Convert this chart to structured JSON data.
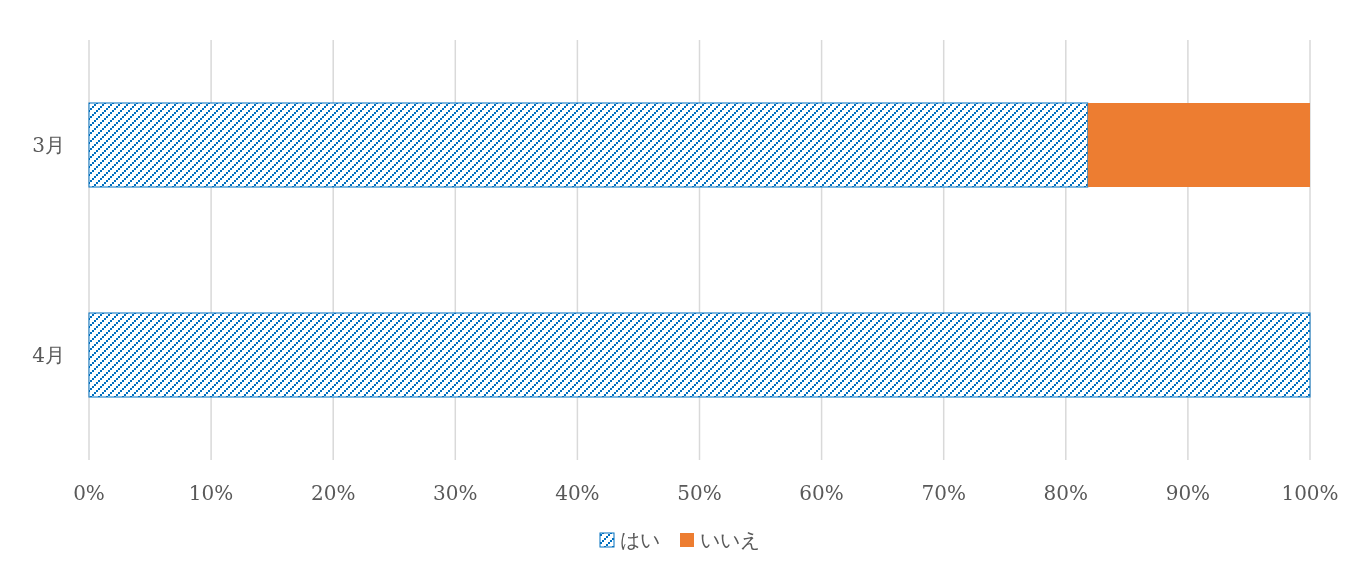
{
  "chart_data": {
    "type": "bar",
    "orientation": "horizontal",
    "stacked": true,
    "categories": [
      "3月",
      "4月"
    ],
    "series": [
      {
        "name": "はい",
        "color": "#0070c0",
        "values": [
          81.8,
          100
        ]
      },
      {
        "name": "いいえ",
        "color": "#ed7d31",
        "values": [
          18.2,
          0
        ]
      }
    ],
    "xlim": [
      0,
      100
    ],
    "xticks": [
      {
        "value": 0,
        "label": "0%"
      },
      {
        "value": 10,
        "label": "10%"
      },
      {
        "value": 20,
        "label": "20%"
      },
      {
        "value": 30,
        "label": "30%"
      },
      {
        "value": 40,
        "label": "40%"
      },
      {
        "value": 50,
        "label": "50%"
      },
      {
        "value": 60,
        "label": "60%"
      },
      {
        "value": 70,
        "label": "70%"
      },
      {
        "value": 80,
        "label": "80%"
      },
      {
        "value": 90,
        "label": "90%"
      },
      {
        "value": 100,
        "label": "100%"
      }
    ],
    "grid": "x",
    "legend": "bottom"
  }
}
